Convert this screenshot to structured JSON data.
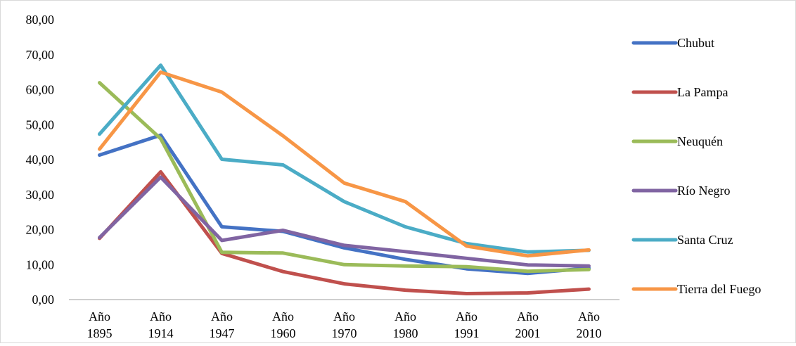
{
  "chart_data": {
    "type": "line",
    "title": "",
    "xlabel": "",
    "ylabel": "",
    "categories": [
      [
        "Año",
        "1895"
      ],
      [
        "Año",
        "1914"
      ],
      [
        "Año",
        "1947"
      ],
      [
        "Año",
        "1960"
      ],
      [
        "Año",
        "1970"
      ],
      [
        "Año",
        "1980"
      ],
      [
        "Año",
        "1991"
      ],
      [
        "Año",
        "2001"
      ],
      [
        "Año",
        "2010"
      ]
    ],
    "yticks": [
      "0,00",
      "10,00",
      "20,00",
      "30,00",
      "40,00",
      "50,00",
      "60,00",
      "70,00",
      "80,00"
    ],
    "ylim": [
      0,
      80
    ],
    "grid": false,
    "legend_position": "right",
    "series": [
      {
        "name": "Chubut",
        "color": "#4472c4",
        "values": [
          41.3,
          47.0,
          20.8,
          19.5,
          14.8,
          11.5,
          8.8,
          7.5,
          9.0
        ]
      },
      {
        "name": "La Pampa",
        "color": "#c0504d",
        "values": [
          17.5,
          36.5,
          13.2,
          8.0,
          4.5,
          2.7,
          1.7,
          1.9,
          3.0
        ]
      },
      {
        "name": "Neuquén",
        "color": "#9bbb59",
        "values": [
          62.0,
          46.0,
          13.5,
          13.3,
          10.0,
          9.6,
          9.4,
          8.1,
          8.6
        ]
      },
      {
        "name": "Río Negro",
        "color": "#8064a2",
        "values": [
          17.7,
          35.0,
          16.9,
          19.8,
          15.5,
          13.7,
          11.8,
          9.9,
          9.6
        ]
      },
      {
        "name": "Santa Cruz",
        "color": "#4bacc6",
        "values": [
          47.3,
          67.0,
          40.1,
          38.5,
          28.0,
          20.8,
          16.0,
          13.6,
          14.1
        ]
      },
      {
        "name": "Tierra del Fuego",
        "color": "#f79646",
        "values": [
          43.0,
          65.0,
          59.3,
          46.8,
          33.3,
          28.0,
          15.3,
          12.5,
          14.2
        ]
      }
    ]
  }
}
